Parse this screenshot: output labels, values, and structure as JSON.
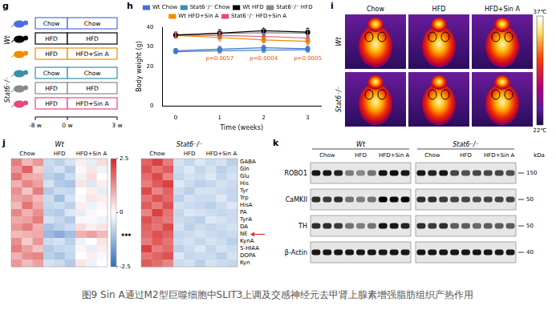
{
  "caption": "图9 Sin A通过M2型巨噬细胞中SLIT3上调及交感神经元去甲肾上腺素增强脂肪组织产热作用",
  "panels": {
    "g": {
      "label": "g",
      "timepoints": [
        "-8 w",
        "0 w",
        "3 w"
      ],
      "groups": [
        {
          "name": "Wt",
          "rows": [
            {
              "color": "#4c6edb",
              "phases": [
                "Chow",
                "Chow"
              ]
            },
            {
              "color": "#000000",
              "phases": [
                "HFD",
                "HFD"
              ]
            },
            {
              "color": "#f08c00",
              "phases": [
                "HFD",
                "HFD+Sin A"
              ]
            }
          ]
        },
        {
          "name": "Stat6⁻/⁻",
          "rows": [
            {
              "color": "#3a8fa8",
              "phases": [
                "Chow",
                "Chow"
              ]
            },
            {
              "color": "#8a8a8a",
              "phases": [
                "HFD",
                "HFD"
              ]
            },
            {
              "color": "#e64980",
              "phases": [
                "HFD",
                "HFD+Sin A"
              ]
            }
          ]
        }
      ]
    },
    "i": {
      "label": "i",
      "columns": [
        "Chow",
        "HFD",
        "HFD+Sin A"
      ],
      "rows": [
        "Wt",
        "Stat6⁻/⁻"
      ],
      "colorbar": {
        "max_label": "37℃",
        "min_label": "22℃"
      }
    },
    "j": {
      "label": "j",
      "rows": [
        "GABA",
        "Gln",
        "Glu",
        "His",
        "Tyr",
        "Trp",
        "HisA",
        "PA",
        "TyrA",
        "DA",
        "NE",
        "KynA",
        "5-HIAA",
        "DOPA",
        "Kyn"
      ],
      "groups": [
        "Chow",
        "HFD",
        "HFD+Sin A"
      ],
      "colorbar": {
        "range": [
          -2.5,
          2.5
        ],
        "ticks": [
          2.5,
          0,
          -2.5
        ]
      },
      "highlight": "NE",
      "annotation": "***",
      "heatmaps": [
        {
          "title": "Wt",
          "values": [
            [
              1.5,
              0.8,
              1.2,
              -0.6,
              -0.8,
              -0.5,
              0.2,
              -0.3,
              0.4
            ],
            [
              1.2,
              1.8,
              0.6,
              -0.7,
              -0.5,
              -0.9,
              0.1,
              0.3,
              -0.2
            ],
            [
              1.6,
              1.0,
              0.9,
              -0.8,
              -1.0,
              -0.6,
              -0.2,
              0.4,
              0.0
            ],
            [
              0.9,
              1.4,
              1.1,
              -0.5,
              -0.9,
              -1.0,
              0.3,
              -0.4,
              0.2
            ],
            [
              1.3,
              0.7,
              1.5,
              -0.9,
              -0.6,
              -0.7,
              0.0,
              0.2,
              -0.3
            ],
            [
              1.1,
              1.2,
              0.8,
              -0.6,
              -1.1,
              -0.5,
              -0.1,
              0.3,
              0.2
            ],
            [
              0.8,
              1.6,
              1.0,
              -0.7,
              -0.6,
              -0.8,
              0.2,
              -0.2,
              0.1
            ],
            [
              1.4,
              0.9,
              1.3,
              -0.8,
              -0.9,
              -0.4,
              -0.3,
              0.1,
              0.0
            ],
            [
              1.0,
              1.1,
              1.5,
              -0.5,
              -0.7,
              -0.9,
              0.1,
              -0.1,
              -0.2
            ],
            [
              1.2,
              1.5,
              0.9,
              -1.0,
              -0.8,
              -0.6,
              0.4,
              0.2,
              0.3
            ],
            [
              0.8,
              0.9,
              1.0,
              -1.2,
              -1.4,
              -1.1,
              0.9,
              1.1,
              0.8
            ],
            [
              1.3,
              0.6,
              1.2,
              -0.6,
              -0.5,
              -0.8,
              -0.2,
              0.0,
              0.3
            ],
            [
              1.5,
              1.1,
              0.7,
              -0.9,
              -0.7,
              -0.6,
              0.1,
              -0.3,
              0.2
            ],
            [
              0.9,
              1.3,
              1.4,
              -0.8,
              -1.0,
              -0.7,
              0.0,
              0.2,
              -0.1
            ],
            [
              1.2,
              0.8,
              1.1,
              -0.5,
              -0.6,
              -0.9,
              0.3,
              -0.2,
              0.0
            ]
          ]
        },
        {
          "title": "Stat6⁻/⁻",
          "values": [
            [
              1.8,
              2.2,
              1.5,
              -0.5,
              -0.7,
              -0.4,
              -0.6,
              -0.5,
              -0.8
            ],
            [
              2.0,
              1.6,
              1.9,
              -0.6,
              -0.4,
              -0.7,
              -0.5,
              -0.8,
              -0.6
            ],
            [
              1.7,
              2.1,
              1.4,
              -0.7,
              -0.5,
              -0.6,
              -0.4,
              -0.7,
              -0.5
            ],
            [
              1.5,
              1.9,
              2.2,
              -0.4,
              -0.6,
              -0.8,
              -0.7,
              -0.5,
              -0.6
            ],
            [
              2.1,
              1.4,
              1.8,
              -0.6,
              -0.8,
              -0.5,
              -0.5,
              -0.6,
              -0.7
            ],
            [
              1.6,
              2.0,
              1.7,
              -0.8,
              -0.5,
              -0.6,
              -0.6,
              -0.4,
              -0.7
            ],
            [
              1.9,
              1.5,
              2.0,
              -0.5,
              -0.6,
              -0.7,
              -0.8,
              -0.6,
              -0.4
            ],
            [
              1.4,
              2.2,
              1.6,
              -0.7,
              -0.4,
              -0.5,
              -0.6,
              -0.7,
              -0.6
            ],
            [
              2.0,
              1.7,
              1.5,
              -0.6,
              -0.7,
              -0.8,
              -0.4,
              -0.5,
              -0.6
            ],
            [
              1.8,
              1.6,
              2.1,
              -0.5,
              -0.8,
              -0.6,
              -0.7,
              -0.6,
              -0.5
            ],
            [
              1.7,
              2.0,
              1.8,
              -0.7,
              -0.6,
              -0.5,
              -0.6,
              -0.7,
              -0.6
            ],
            [
              1.5,
              1.9,
              1.6,
              -0.6,
              -0.5,
              -0.7,
              -0.5,
              -0.6,
              -0.8
            ],
            [
              2.2,
              1.5,
              1.7,
              -0.8,
              -0.6,
              -0.4,
              -0.7,
              -0.5,
              -0.6
            ],
            [
              1.6,
              1.8,
              2.0,
              -0.4,
              -0.7,
              -0.6,
              -0.6,
              -0.8,
              -0.5
            ],
            [
              1.9,
              1.7,
              1.4,
              -0.6,
              -0.5,
              -0.8,
              -0.5,
              -0.6,
              -0.7
            ]
          ]
        }
      ]
    },
    "k": {
      "label": "k",
      "unit": "kDa",
      "genotypes": [
        "Wt",
        "Stat6⁻/⁻"
      ],
      "groups": [
        "Chow",
        "HFD",
        "HFD+Sin A"
      ],
      "blots": [
        {
          "protein": "ROBO1",
          "marker": 150,
          "intensities": [
            0.9,
            0.9,
            0.85,
            0.45,
            0.4,
            0.5,
            0.9,
            0.95,
            0.9,
            0.9,
            0.85,
            0.9,
            0.7,
            0.65,
            0.7,
            0.7,
            0.7,
            0.65
          ]
        },
        {
          "protein": "CaMKII",
          "marker": 50,
          "intensities": [
            0.8,
            0.75,
            0.8,
            0.5,
            0.45,
            0.5,
            1.0,
            0.95,
            1.0,
            0.8,
            0.8,
            0.75,
            0.7,
            0.7,
            0.65,
            0.7,
            0.7,
            0.7
          ]
        },
        {
          "protein": "TH",
          "marker": 50,
          "intensities": [
            0.8,
            0.8,
            0.75,
            0.5,
            0.45,
            0.5,
            0.9,
            0.9,
            0.85,
            0.8,
            0.75,
            0.8,
            0.6,
            0.6,
            0.55,
            0.6,
            0.6,
            0.6
          ]
        },
        {
          "protein": "β-Actin",
          "marker": 40,
          "intensities": [
            0.9,
            0.9,
            0.9,
            0.9,
            0.9,
            0.9,
            0.9,
            0.9,
            0.9,
            0.9,
            0.9,
            0.9,
            0.9,
            0.9,
            0.9,
            0.9,
            0.9,
            0.9
          ]
        }
      ]
    }
  },
  "chart_data": {
    "label": "h",
    "type": "line",
    "x_label": "Time (weeks)",
    "y_label": "Body weight (g)",
    "x": [
      0,
      1,
      2,
      3
    ],
    "xlim": [
      -0.3,
      3.3
    ],
    "xticks": [
      0,
      1,
      2,
      3
    ],
    "ylim": [
      0,
      40
    ],
    "yticks": [
      0,
      20,
      30,
      40
    ],
    "grid": false,
    "legend": "top",
    "series": [
      {
        "name": "Wt Chow",
        "color": "#4c6edb",
        "marker": "circle",
        "values": [
          28.0,
          28.8,
          29.5,
          29.0
        ],
        "errors": [
          1.2,
          1.5,
          1.5,
          1.5
        ]
      },
      {
        "name": "Stat6⁻/⁻ Chow",
        "color": "#3a8fa8",
        "marker": "triangle",
        "values": [
          27.5,
          28.0,
          28.3,
          28.5
        ],
        "errors": [
          1.0,
          1.2,
          1.2,
          1.2
        ]
      },
      {
        "name": "Wt HFD",
        "color": "#000000",
        "marker": "circle",
        "values": [
          36.0,
          37.0,
          38.2,
          37.5
        ],
        "errors": [
          1.5,
          1.8,
          2.2,
          2.0
        ]
      },
      {
        "name": "Stat6⁻/⁻ HFD",
        "color": "#8a8a8a",
        "marker": "triangle",
        "values": [
          36.2,
          36.8,
          37.2,
          37.0
        ],
        "errors": [
          1.5,
          1.5,
          1.8,
          1.8
        ]
      },
      {
        "name": "Wt HFD+Sin A",
        "color": "#f08c00",
        "marker": "circle",
        "values": [
          35.8,
          34.8,
          33.5,
          32.8
        ],
        "errors": [
          1.5,
          1.8,
          1.5,
          1.5
        ]
      },
      {
        "name": "Stat6⁻/⁻ HFD+Sin A",
        "color": "#e64980",
        "marker": "triangle",
        "values": [
          36.0,
          35.8,
          35.3,
          34.5
        ],
        "errors": [
          1.5,
          1.5,
          1.5,
          1.5
        ]
      }
    ],
    "annotations": [
      {
        "text": "p=0.0057",
        "x": 1,
        "y": 24
      },
      {
        "text": "p=0.0004",
        "x": 2,
        "y": 24
      },
      {
        "text": "p=0.0005",
        "x": 3,
        "y": 24
      }
    ]
  }
}
